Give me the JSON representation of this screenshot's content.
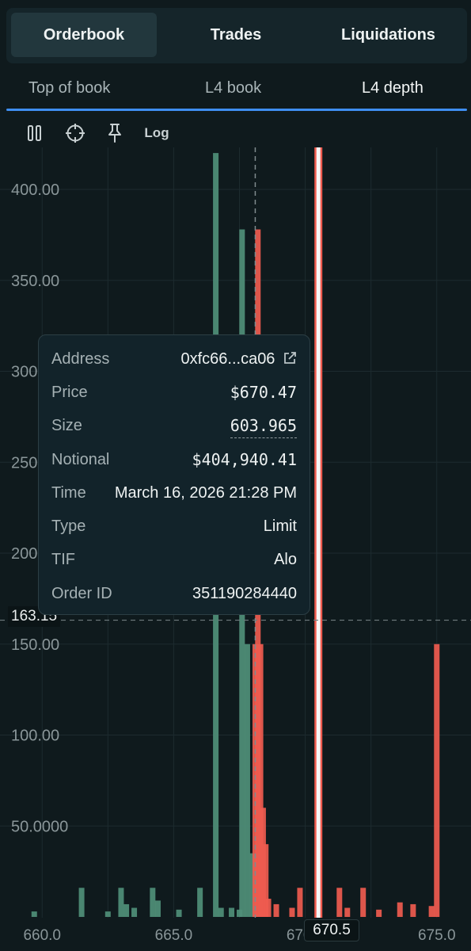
{
  "tabs": [
    {
      "label": "Orderbook",
      "active": true
    },
    {
      "label": "Trades",
      "active": false
    },
    {
      "label": "Liquidations",
      "active": false
    }
  ],
  "subtabs": [
    {
      "label": "Top of book",
      "active": false
    },
    {
      "label": "L4 book",
      "active": false
    },
    {
      "label": "L4 depth",
      "active": true
    }
  ],
  "toolbar": {
    "pause_icon": "pause-icon",
    "crosshair_icon": "crosshair-icon",
    "pin_icon": "pin-icon",
    "log_label": "Log"
  },
  "crosshair": {
    "y_value": "163.15",
    "x_value": "670.5"
  },
  "tooltip": {
    "address_label": "Address",
    "address_value": "0xfc66...ca06",
    "price_label": "Price",
    "price_value": "$670.47",
    "size_label": "Size",
    "size_value": "603.965",
    "notional_label": "Notional",
    "notional_value": "$404,940.41",
    "time_label": "Time",
    "time_value": "March 16, 2026 21:28 PM",
    "type_label": "Type",
    "type_value": "Limit",
    "tif_label": "TIF",
    "tif_value": "Alo",
    "order_id_label": "Order ID",
    "order_id_value": "351190284440"
  },
  "colors": {
    "bid": "#4f8f78",
    "ask": "#ef5b4f",
    "accent": "#3f8ef1",
    "background": "#0f1a1d"
  },
  "chart_data": {
    "type": "bar",
    "xlim": [
      659.0,
      676.0
    ],
    "ylim": [
      0,
      420
    ],
    "y_ticks": [
      "50.0000",
      "100.00",
      "150.00",
      "200.00",
      "250.00",
      "300.00",
      "350.00",
      "400.00"
    ],
    "y_tick_values": [
      50,
      100,
      150,
      200,
      250,
      300,
      350,
      400
    ],
    "x_ticks": [
      "660.0",
      "665.0",
      "670.0",
      "675.0"
    ],
    "x_tick_values": [
      660,
      665,
      670,
      675
    ],
    "mid_price": 668.1,
    "highlight_price": 670.5,
    "series": [
      {
        "name": "bids",
        "color": "#4f8f78",
        "x": [
          659.7,
          661.5,
          662.5,
          663.0,
          663.2,
          663.5,
          664.2,
          664.4,
          665.2,
          666.0,
          666.6,
          666.8,
          667.2,
          667.5,
          667.6,
          667.8,
          668.0
        ],
        "y": [
          3,
          16,
          3,
          16,
          7,
          5,
          16,
          9,
          4,
          16,
          420,
          5,
          5,
          4,
          378,
          150,
          35
        ]
      },
      {
        "name": "asks",
        "color": "#ef5b4f",
        "x": [
          668.1,
          668.2,
          668.3,
          668.4,
          668.5,
          668.6,
          668.9,
          669.5,
          669.8,
          670.5,
          671.3,
          671.6,
          672.2,
          672.8,
          673.6,
          674.1,
          674.8,
          675.0
        ],
        "y": [
          150,
          378,
          150,
          60,
          40,
          10,
          7,
          5,
          16,
          35,
          16,
          5,
          16,
          4,
          8,
          7,
          6,
          150
        ]
      }
    ]
  }
}
